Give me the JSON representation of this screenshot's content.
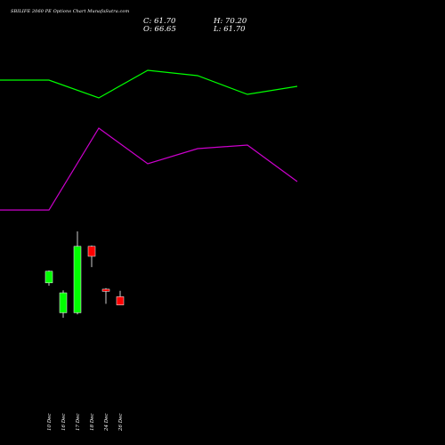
{
  "header": {
    "title": "SBILIFE 2060 PE Options  Chart MunafaSutra.com",
    "close": "C: 61.70",
    "open": "O: 66.65",
    "high": "H: 70.20",
    "low": "L: 61.70"
  },
  "chart_data": {
    "type": "candlestick",
    "categories": [
      "10 Dec",
      "16 Dec",
      "17 Dec",
      "18 Dec",
      "24 Dec",
      "26 Dec"
    ],
    "candles": [
      {
        "date": "10 Dec",
        "open": 75,
        "close": 82,
        "high": 82.5,
        "low": 73.3,
        "color": "#00ff00"
      },
      {
        "date": "16 Dec",
        "open": 57,
        "close": 69,
        "high": 70.5,
        "low": 54,
        "color": "#00ff00"
      },
      {
        "date": "17 Dec",
        "open": 57,
        "close": 97,
        "high": 106,
        "low": 56,
        "color": "#00ff00"
      },
      {
        "date": "18 Dec",
        "open": 97,
        "close": 91,
        "high": 97.5,
        "low": 84.5,
        "color": "#ff0000"
      },
      {
        "date": "24 Dec",
        "open": 71.2,
        "close": 69.9,
        "high": 71.8,
        "low": 62.4,
        "color": "#ff0000"
      },
      {
        "date": "26 Dec",
        "open": 66.65,
        "close": 61.7,
        "high": 70.2,
        "low": 61.7,
        "color": "#ff0000"
      }
    ],
    "overlays": [
      {
        "color": "#00ff00",
        "values": [
          null,
          null,
          null,
          null,
          null,
          null
        ]
      },
      {
        "color": "#cc00cc",
        "values": [
          null,
          null,
          null,
          null,
          null,
          null
        ]
      }
    ]
  }
}
